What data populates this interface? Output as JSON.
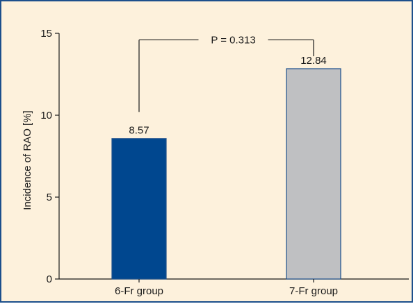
{
  "chart_data": {
    "type": "bar",
    "title": "",
    "xlabel": "",
    "ylabel": "Incidence of RAO [%]",
    "categories": [
      "6-Fr group",
      "7-Fr group"
    ],
    "values": [
      8.57,
      12.84
    ],
    "value_labels": [
      "8.57",
      "12.84"
    ],
    "ylim": [
      0,
      15
    ],
    "yticks": [
      0,
      5,
      10,
      15
    ],
    "ytick_labels": [
      "0",
      "5",
      "10",
      "15"
    ],
    "grid": false,
    "legend": "none",
    "bar_colors": [
      "#00478f",
      "#bfc0c2"
    ],
    "bar_edge_color": "#1c4f8c",
    "annotation": {
      "text": "P = 0.313",
      "bracket_top_value": 14.6,
      "left_drop_value": 10.2,
      "right_drop_value": 13.6
    },
    "background": "#fdf1dc",
    "frame_color": "#1c4f8c"
  }
}
